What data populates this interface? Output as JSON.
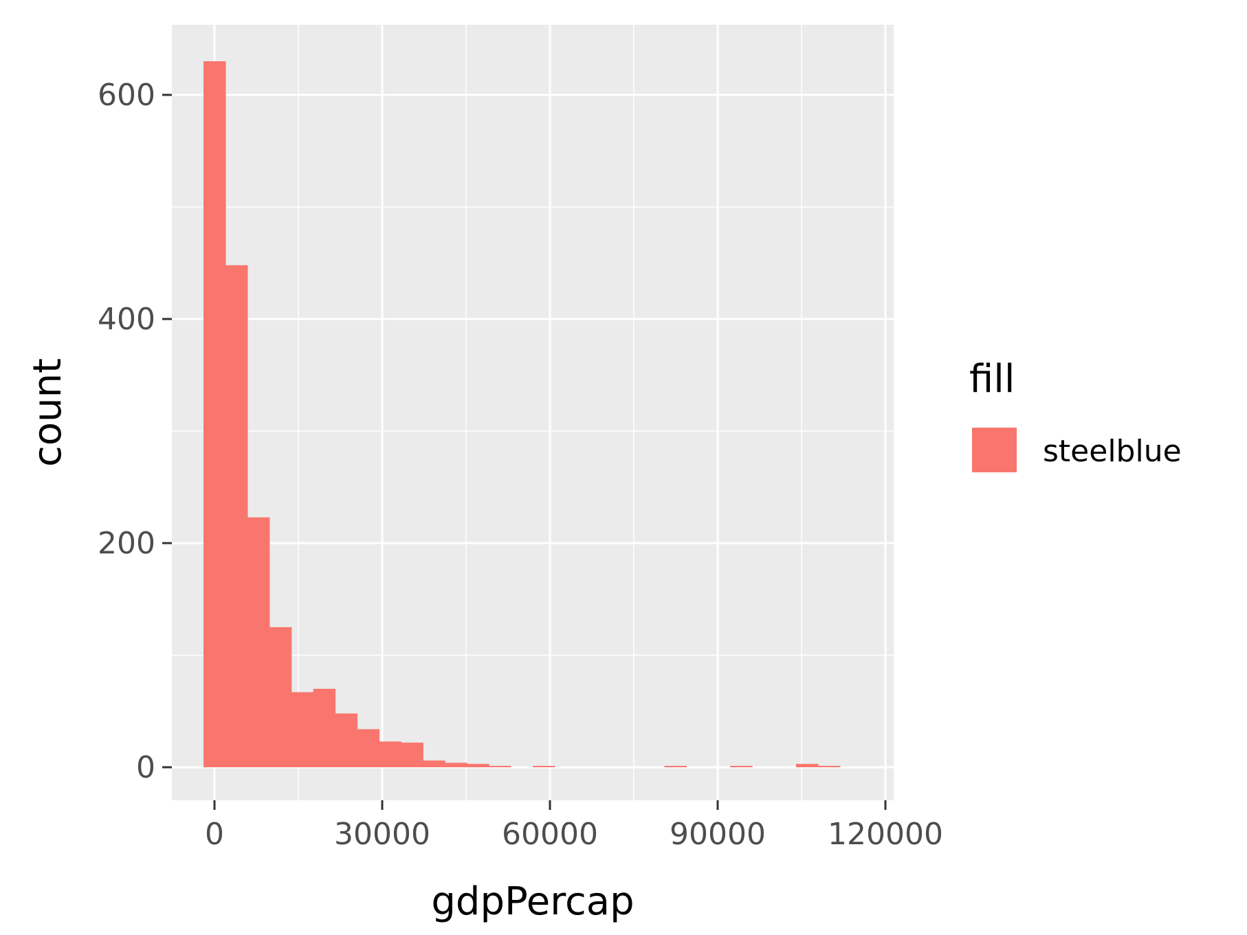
{
  "chart_data": {
    "type": "bar",
    "subtype": "histogram",
    "xlabel": "gdpPercap",
    "ylabel": "count",
    "xlim": [
      -7500,
      120000
    ],
    "ylim": [
      -32,
      657
    ],
    "x_ticks": [
      0,
      30000,
      60000,
      90000,
      120000
    ],
    "x_tick_labels": [
      "0",
      "30000",
      "60000",
      "90000",
      "120000"
    ],
    "y_ticks": [
      0,
      200,
      400,
      600
    ],
    "y_tick_labels": [
      "0",
      "200",
      "400",
      "600"
    ],
    "grid": true,
    "bin_width": 3925,
    "bin_start": -1963,
    "series": [
      {
        "name": "steelblue",
        "values": [
          630,
          448,
          223,
          125,
          67,
          70,
          48,
          34,
          23,
          22,
          6,
          4,
          3,
          1,
          0,
          1,
          0,
          0,
          0,
          0,
          0,
          1,
          0,
          0,
          1,
          0,
          0,
          3,
          1
        ]
      }
    ],
    "legend": {
      "title": "fill",
      "entries": [
        "steelblue"
      ],
      "placement": "right"
    },
    "colors": {
      "bar_fill": "#F8766D",
      "panel_bg": "#EBEBEB",
      "grid": "#FFFFFF",
      "tick_text": "#4D4D4D",
      "tick_line": "#333333"
    }
  }
}
